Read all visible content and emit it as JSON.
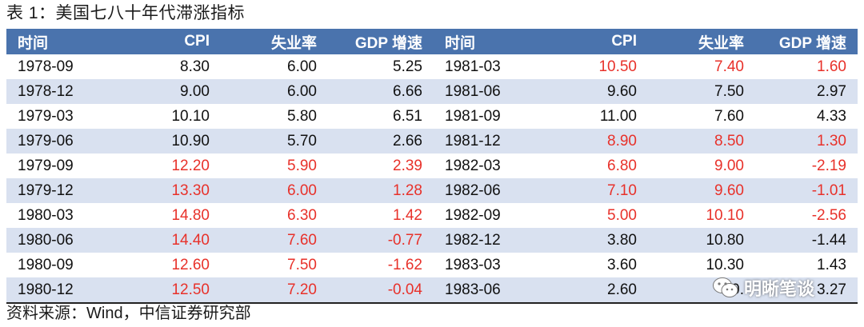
{
  "title": "表 1：美国七八十年代滞涨指标",
  "headers": [
    "时间",
    "CPI",
    "失业率",
    "GDP 增速",
    "时间",
    "CPI",
    "失业率",
    "GDP 增速"
  ],
  "rows": [
    {
      "c": [
        "1978-09",
        "8.30",
        "6.00",
        "5.25",
        "1981-03",
        "10.50",
        "7.40",
        "1.60"
      ],
      "red": [
        false,
        false,
        false,
        false,
        false,
        true,
        true,
        true
      ]
    },
    {
      "c": [
        "1978-12",
        "9.00",
        "6.00",
        "6.66",
        "1981-06",
        "9.60",
        "7.50",
        "2.97"
      ],
      "red": [
        false,
        false,
        false,
        false,
        false,
        false,
        false,
        false
      ]
    },
    {
      "c": [
        "1979-03",
        "10.10",
        "5.80",
        "6.51",
        "1981-09",
        "11.00",
        "7.60",
        "4.33"
      ],
      "red": [
        false,
        false,
        false,
        false,
        false,
        false,
        false,
        false
      ]
    },
    {
      "c": [
        "1979-06",
        "10.90",
        "5.70",
        "2.66",
        "1981-12",
        "8.90",
        "8.50",
        "1.30"
      ],
      "red": [
        false,
        false,
        false,
        false,
        false,
        true,
        true,
        true
      ]
    },
    {
      "c": [
        "1979-09",
        "12.20",
        "5.90",
        "2.39",
        "1982-03",
        "6.80",
        "9.00",
        "-2.19"
      ],
      "red": [
        false,
        true,
        true,
        true,
        false,
        true,
        true,
        true
      ]
    },
    {
      "c": [
        "1979-12",
        "13.30",
        "6.00",
        "1.28",
        "1982-06",
        "7.10",
        "9.60",
        "-1.01"
      ],
      "red": [
        false,
        true,
        true,
        true,
        false,
        true,
        true,
        true
      ]
    },
    {
      "c": [
        "1980-03",
        "14.80",
        "6.30",
        "1.42",
        "1982-09",
        "5.00",
        "10.10",
        "-2.56"
      ],
      "red": [
        false,
        true,
        true,
        true,
        false,
        true,
        true,
        true
      ]
    },
    {
      "c": [
        "1980-06",
        "14.40",
        "7.60",
        "-0.77",
        "1982-12",
        "3.80",
        "10.80",
        "-1.44"
      ],
      "red": [
        false,
        true,
        true,
        true,
        false,
        false,
        false,
        false
      ]
    },
    {
      "c": [
        "1980-09",
        "12.60",
        "7.50",
        "-1.62",
        "1983-03",
        "3.60",
        "10.30",
        "1.43"
      ],
      "red": [
        false,
        true,
        true,
        true,
        false,
        false,
        false,
        false
      ]
    },
    {
      "c": [
        "1980-12",
        "12.50",
        "7.20",
        "-0.04",
        "1983-06",
        "2.60",
        "10.",
        "3.27"
      ],
      "red": [
        false,
        true,
        true,
        true,
        false,
        false,
        false,
        false
      ]
    }
  ],
  "colors": {
    "header_bg": "#4a73ad",
    "stripe_bg": "#d9e1f0",
    "highlight_text": "#e8312a"
  },
  "source": "资料来源：Wind，中信证券研究部",
  "watermark": {
    "text": "明晰笔谈",
    "icon": "wechat-icon"
  }
}
